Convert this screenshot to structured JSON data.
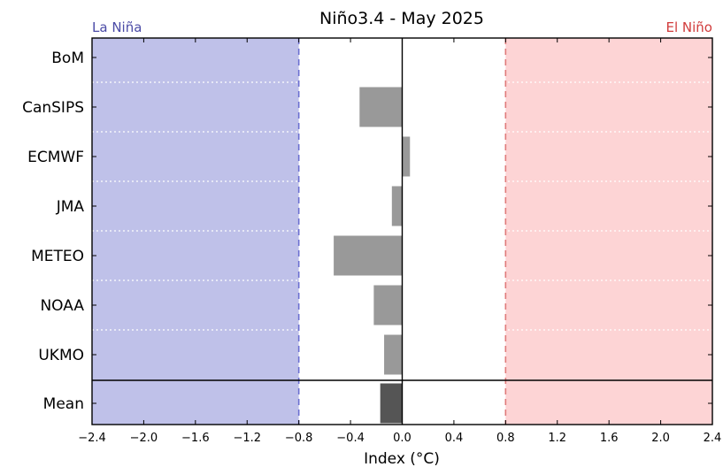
{
  "chart_data": {
    "type": "bar",
    "orientation": "horizontal",
    "title": "Niño3.4 - May 2025",
    "xlabel": "Index (°C)",
    "ylabel": "",
    "xlim": [
      -2.4,
      2.4
    ],
    "xticks": [
      -2.4,
      -2.0,
      -1.6,
      -1.2,
      -0.8,
      -0.4,
      0.0,
      0.4,
      0.8,
      1.2,
      1.6,
      2.0,
      2.4
    ],
    "xtick_labels": [
      "−2.4",
      "−2.0",
      "−1.6",
      "−1.2",
      "−0.8",
      "−0.4",
      "0.0",
      "0.4",
      "0.8",
      "1.2",
      "1.6",
      "2.0",
      "2.4"
    ],
    "categories": [
      "BoM",
      "CanSIPS",
      "ECMWF",
      "JMA",
      "METEO",
      "NOAA",
      "UKMO"
    ],
    "values": [
      0.0,
      -0.33,
      0.06,
      -0.08,
      -0.53,
      -0.22,
      -0.14
    ],
    "mean": {
      "label": "Mean",
      "value": -0.17
    },
    "la_nina": {
      "label": "La Niña",
      "threshold": -0.8,
      "color": "#bfc1e9",
      "line_color": "#6b6fd1",
      "label_color": "#4b4ba6"
    },
    "el_nino": {
      "label": "El Niño",
      "threshold": 0.8,
      "color": "#fdd4d5",
      "line_color": "#e07a7a",
      "label_color": "#d13c3c"
    },
    "bar_color": "#999999",
    "mean_bar_color": "#555555",
    "grid": false
  }
}
